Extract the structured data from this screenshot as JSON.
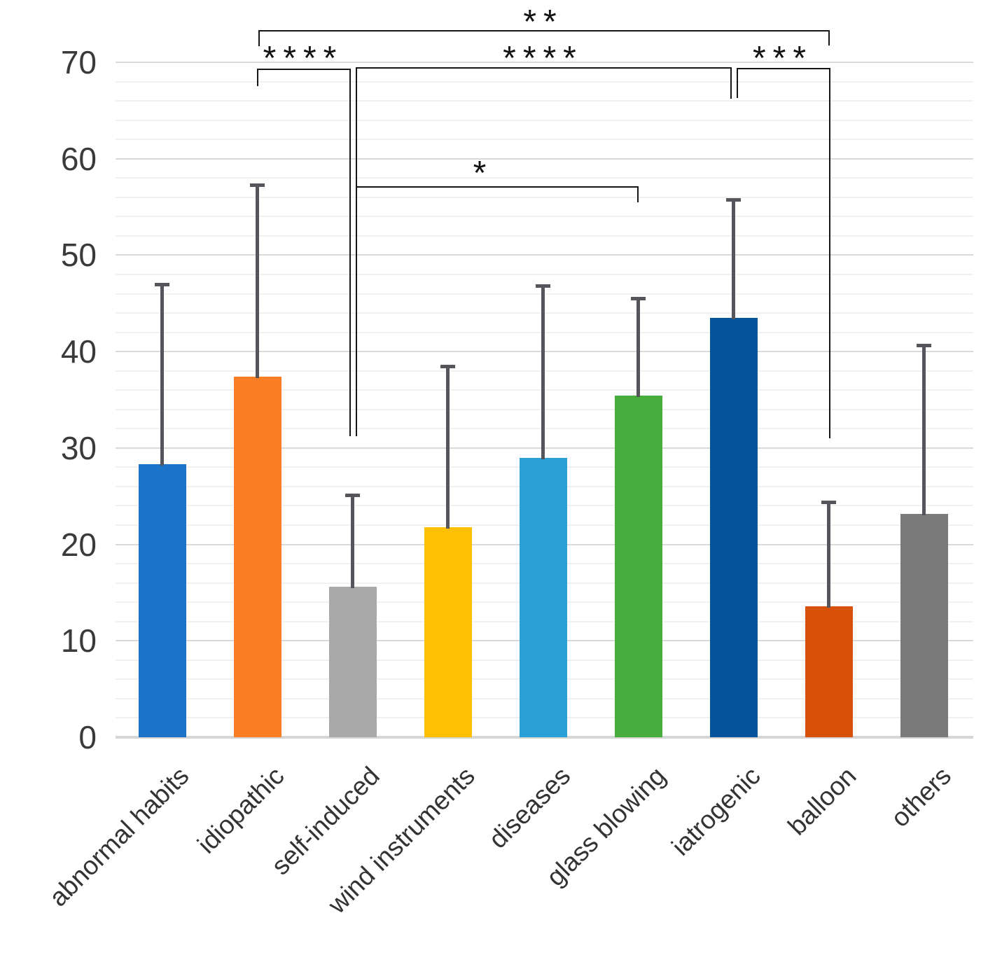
{
  "chart_data": {
    "type": "bar",
    "title": "",
    "categories": [
      "abnormal habits",
      "idiopathic",
      "self-induced",
      "wind instruments",
      "diseases",
      "glass blowing",
      "iatrogenic",
      "balloon",
      "others"
    ],
    "values": [
      28.3,
      37.4,
      15.6,
      21.8,
      29.0,
      35.4,
      43.5,
      13.6,
      23.2
    ],
    "error_plus": [
      18.7,
      19.9,
      9.5,
      16.7,
      17.8,
      10.1,
      12.3,
      10.8,
      17.5
    ],
    "bar_colors": [
      "#1B74C8",
      "#FB7E24",
      "#A9A9A9",
      "#FFC003",
      "#2B9FD8",
      "#47AD3D",
      "#03549B",
      "#D85109",
      "#7A7A7A"
    ],
    "error_bar_color": "#54565B",
    "ylim": [
      0,
      70
    ],
    "y_ticks": [
      0,
      10,
      20,
      30,
      40,
      50,
      60,
      70
    ],
    "xlabel": "",
    "ylabel": "",
    "grid": {
      "major_step": 10,
      "minor_step": 2,
      "major_color": "#DADADA",
      "minor_color": "#F1F1F1",
      "baseline_color": "#D6D6D6"
    },
    "legend": "none",
    "significance": [
      {
        "label": "**",
        "from": "idiopathic",
        "to": "balloon"
      },
      {
        "label": "****",
        "from": "idiopathic",
        "to": "self-induced"
      },
      {
        "label": "****",
        "from": "self-induced",
        "to": "iatrogenic"
      },
      {
        "label": "***",
        "from": "iatrogenic",
        "to": "balloon"
      },
      {
        "label": "*",
        "from": "self-induced",
        "to": "glass blowing"
      }
    ]
  }
}
